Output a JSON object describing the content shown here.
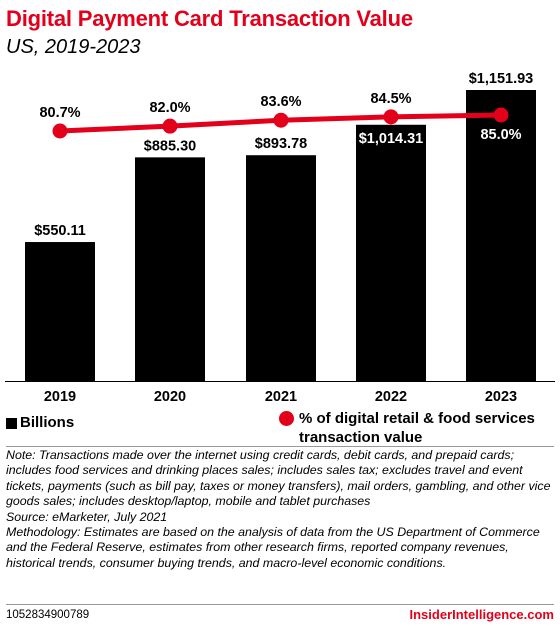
{
  "header": {
    "title": "Digital Payment Card Transaction Value",
    "subtitle": "US, 2019-2023"
  },
  "legend": {
    "bars_label": "Billions",
    "line_label": "% of digital retail & food services transaction value"
  },
  "notes": {
    "note": "Note: Transactions made over the internet using credit cards, debit cards, and prepaid cards; includes food services and drinking places sales; includes sales tax; excludes travel and event tickets, payments (such as bill pay, taxes or money transfers), mail orders, gambling, and other vice goods sales; includes desktop/laptop, mobile and tablet purchases",
    "source": "Source: eMarketer, July 2021",
    "methodology": "Methodology: Estimates are based on the analysis of data from the US Department of Commerce and the Federal Reserve, estimates from other research firms, reported company revenues, historical trends, consumer buying trends, and macro-level economic conditions."
  },
  "footer": {
    "chart_id": "1052834900789",
    "brand": "InsiderIntelligence.com"
  },
  "colors": {
    "bar": "#000000",
    "line": "#e3001b",
    "title": "#e3001b"
  },
  "chart_data": {
    "type": "bar",
    "categories": [
      "2019",
      "2020",
      "2021",
      "2022",
      "2023"
    ],
    "series": [
      {
        "name": "Billions",
        "type": "bar",
        "values": [
          550.11,
          885.3,
          893.78,
          1014.31,
          1151.93
        ],
        "labels": [
          "$550.11",
          "$885.30",
          "$893.78",
          "$1,014.31",
          "$1,151.93"
        ]
      },
      {
        "name": "% of digital retail & food services transaction value",
        "type": "line",
        "values": [
          80.7,
          82.0,
          83.6,
          84.5,
          85.0
        ],
        "labels": [
          "80.7%",
          "82.0%",
          "83.6%",
          "84.5%",
          "85.0%"
        ]
      }
    ],
    "bar_axis_range": [
      0,
      1151.93
    ],
    "grid": false,
    "legend_position": "bottom"
  }
}
